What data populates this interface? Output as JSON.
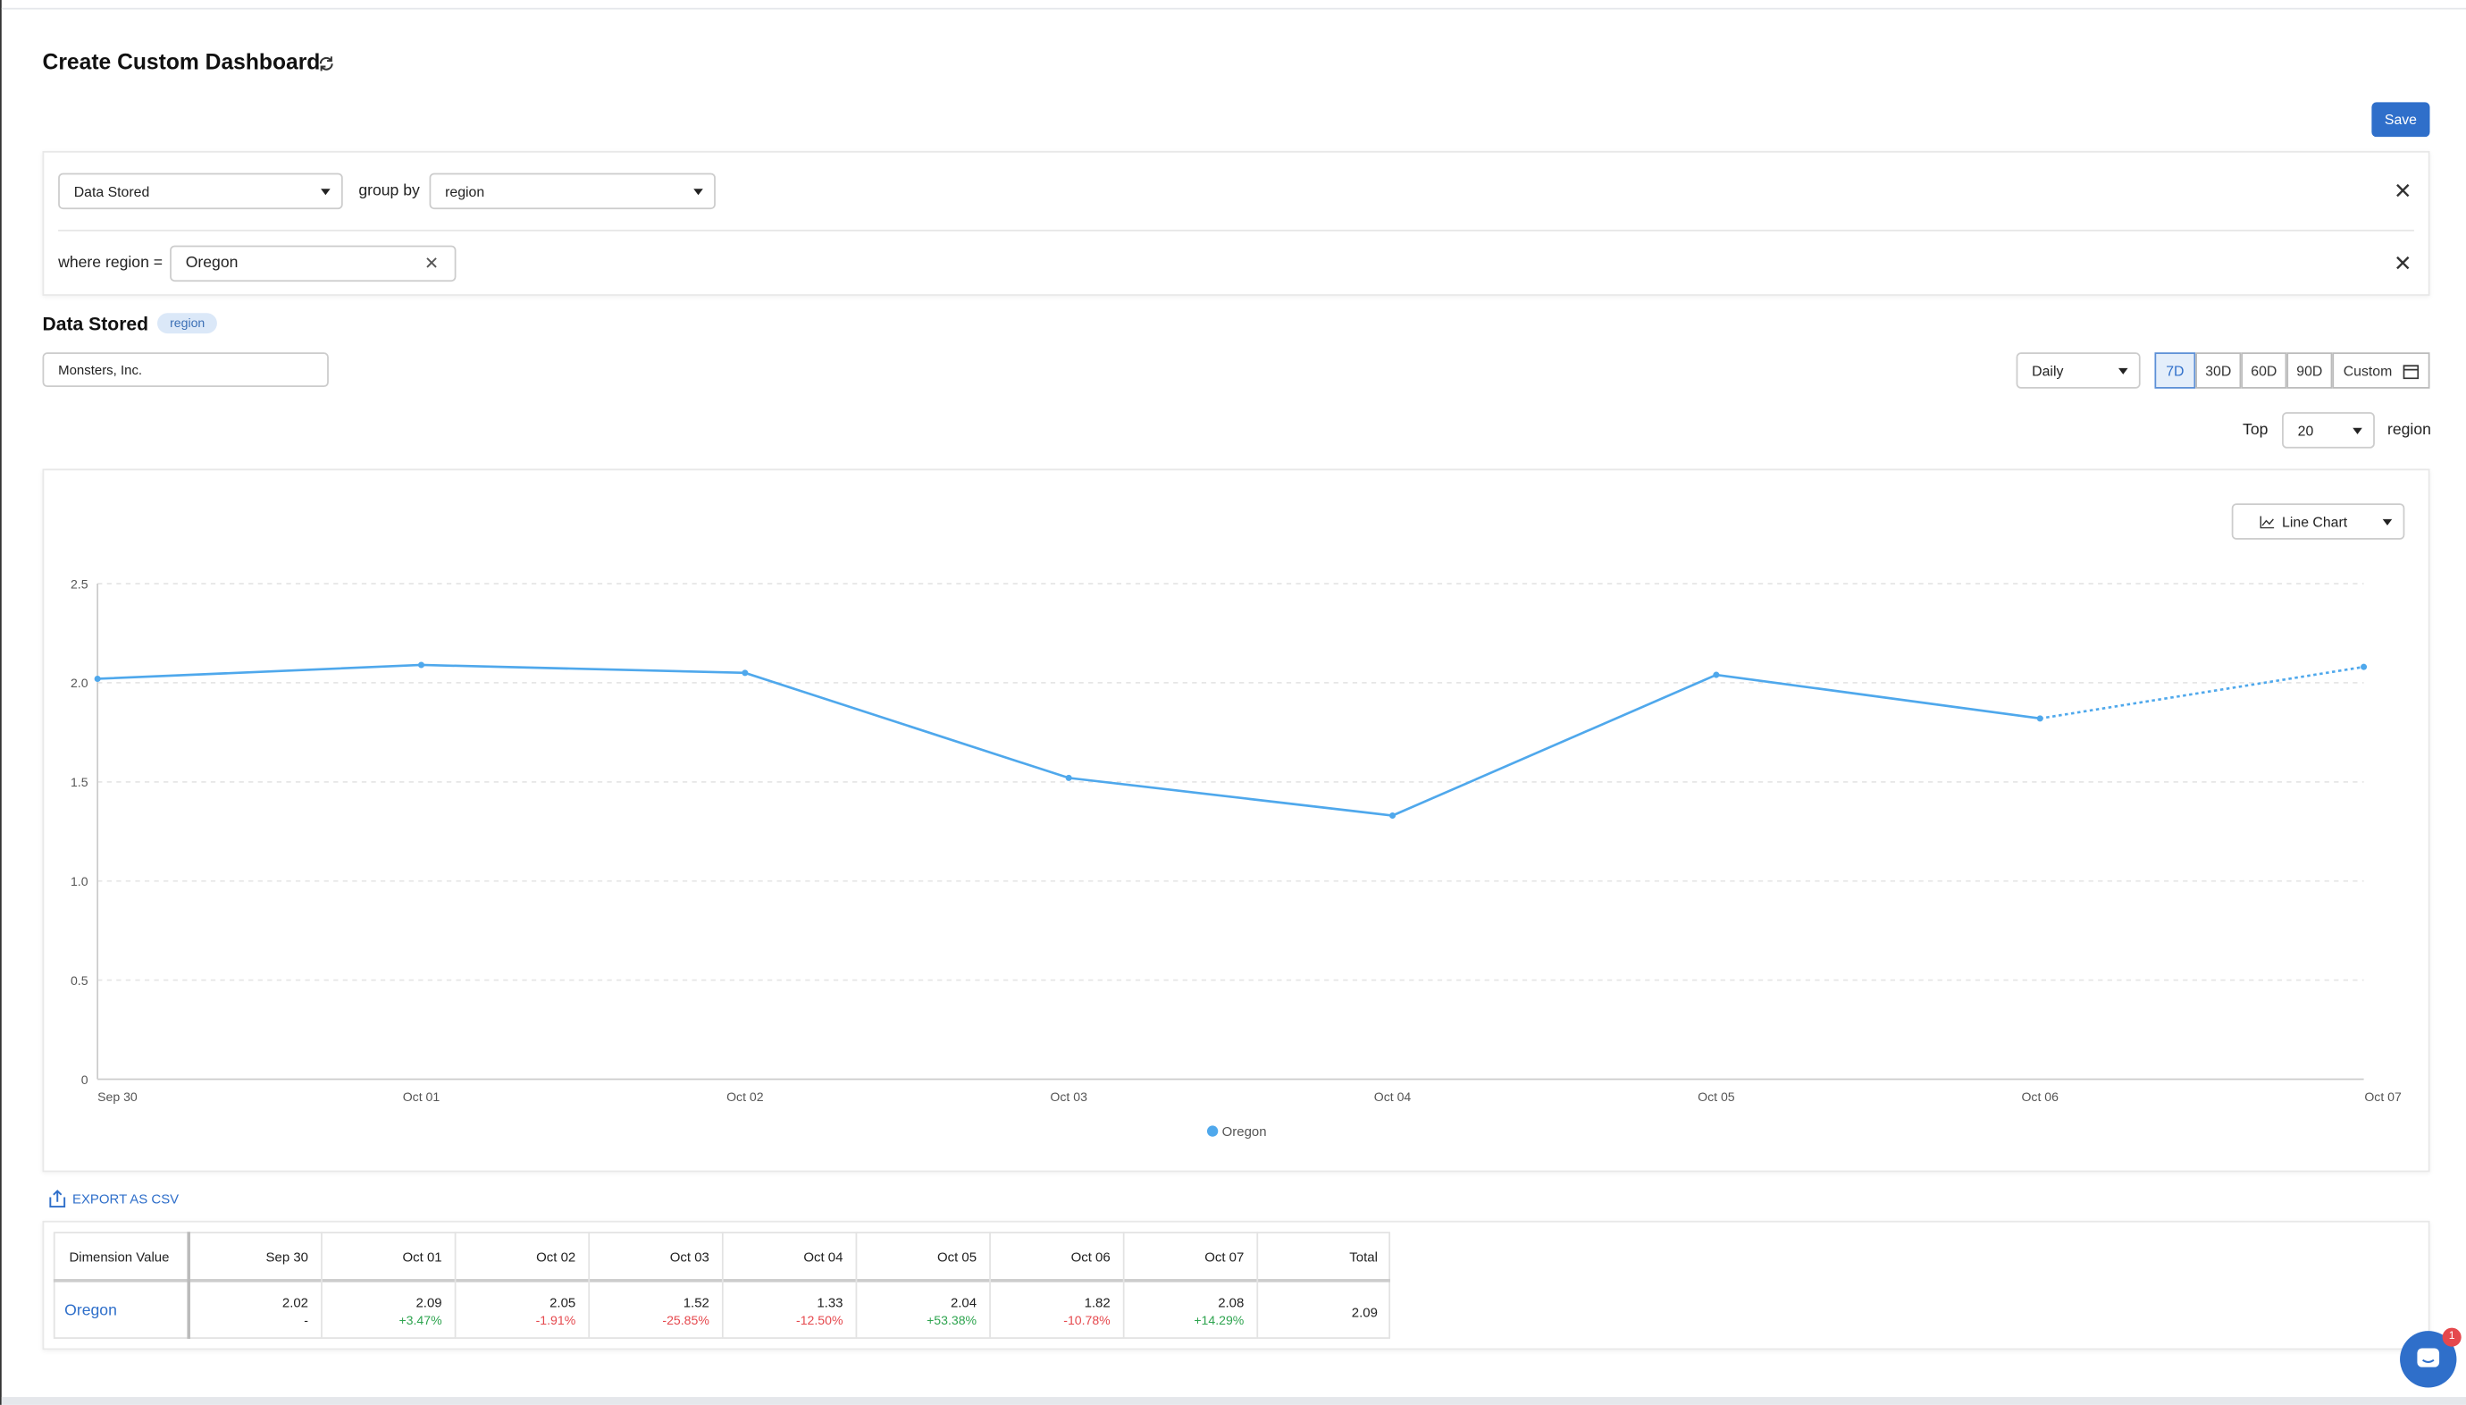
{
  "header": {
    "title": "Create Custom Dashboard",
    "save": "Save"
  },
  "query": {
    "metric": "Data Stored",
    "group_by_label": "group by",
    "group_by": "region",
    "where_label": "where region =",
    "where_value": "Oregon"
  },
  "section": {
    "title": "Data Stored",
    "badge": "region",
    "account": "Monsters, Inc.",
    "interval": "Daily",
    "ranges": [
      "7D",
      "30D",
      "60D",
      "90D",
      "Custom"
    ],
    "top_label": "Top",
    "top_value": "20",
    "top_unit": "region",
    "chart_type": "Line Chart",
    "export": "EXPORT AS CSV"
  },
  "chart_data": {
    "type": "line",
    "categories": [
      "Sep 30",
      "Oct 01",
      "Oct 02",
      "Oct 03",
      "Oct 04",
      "Oct 05",
      "Oct 06",
      "Oct 07"
    ],
    "series": [
      {
        "name": "Oregon",
        "color": "#4fa8ec",
        "values": [
          2.02,
          2.09,
          2.05,
          1.52,
          1.33,
          2.04,
          1.82,
          2.08
        ]
      }
    ],
    "ylim": [
      0,
      2.5
    ],
    "yticks": [
      0,
      0.5,
      {
        "value": 1,
        "label": "1.0"
      },
      1.5,
      {
        "value": 2,
        "label": "2.0"
      },
      2.5
    ],
    "grid": true,
    "legend": "bottom"
  },
  "table": {
    "columns": [
      "Dimension Value",
      "Sep 30",
      "Oct 01",
      "Oct 02",
      "Oct 03",
      "Oct 04",
      "Oct 05",
      "Oct 06",
      "Oct 07",
      "Total"
    ],
    "rows": [
      {
        "name": "Oregon",
        "values": [
          "2.02",
          "2.09",
          "2.05",
          "1.52",
          "1.33",
          "2.04",
          "1.82",
          "2.08"
        ],
        "changes": [
          "-",
          "+3.47%",
          "-1.91%",
          "-25.85%",
          "-12.50%",
          "+53.38%",
          "-10.78%",
          "+14.29%"
        ],
        "total": "2.09"
      }
    ]
  }
}
